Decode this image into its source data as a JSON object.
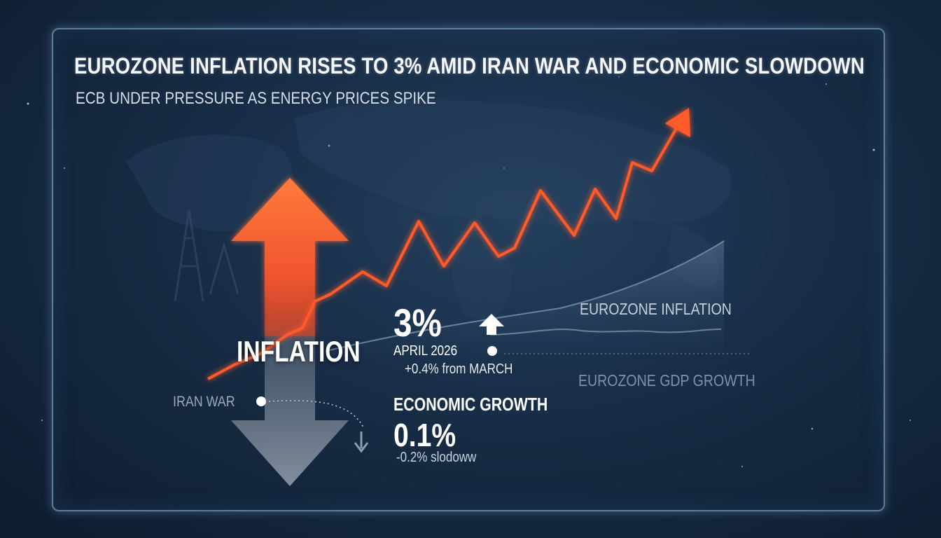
{
  "header": {
    "title": "EUROZONE INFLATION RISES TO 3% AMID IRAN WAR AND ECONOMIC SLOWDOWN",
    "subtitle": "ECB UNDER PRESSURE AS ENERGY PRICES SPIKE"
  },
  "labels": {
    "inflation": "INFLATION",
    "iran_war": "IRAN WAR",
    "eurozone_inflation": "EUROZONE INFLATION",
    "eurozone_gdp": "EUROZONE GDP GROWTH"
  },
  "stats": {
    "inflation_value": "3%",
    "period": "APRIL 2026",
    "change": "+0.4% from MARCH",
    "growth_heading": "ECONOMIC GROWTH",
    "growth_value": "0.1%",
    "growth_change": "-0.2% slodoww"
  },
  "colors": {
    "accent_orange": "#ff5a2c",
    "frame": "#a9cdee",
    "background": "#172c45"
  },
  "icons": [
    "up-arrow-icon",
    "down-arrow-icon",
    "small-up-arrow-icon",
    "small-down-arrow-icon"
  ]
}
